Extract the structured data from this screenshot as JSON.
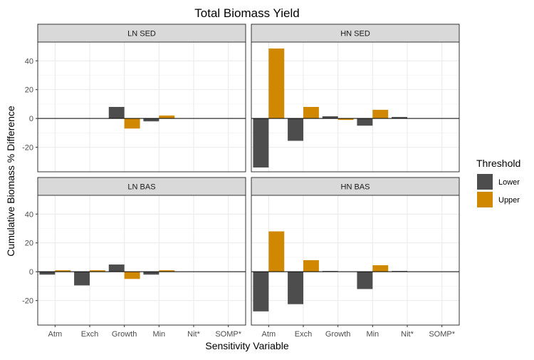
{
  "chart_data": {
    "type": "bar",
    "title": "Total Biomass Yield",
    "xlabel": "Sensitivity Variable",
    "ylabel": "Cumulative Biomass % Difference",
    "categories": [
      "Atm",
      "Exch",
      "Growth",
      "Min",
      "Nit*",
      "SOMP*"
    ],
    "ylim": [
      -37,
      53
    ],
    "yticks": [
      -20,
      0,
      20,
      40
    ],
    "grid": true,
    "legend": {
      "title": "Threshold",
      "position": "right",
      "entries": [
        {
          "name": "Lower",
          "color": "#4d4d4d"
        },
        {
          "name": "Upper",
          "color": "#d08800"
        }
      ]
    },
    "panels": [
      {
        "label": "LN SED",
        "series": [
          {
            "name": "Lower",
            "values": [
              0,
              0,
              8,
              -2,
              0,
              0
            ]
          },
          {
            "name": "Upper",
            "values": [
              0,
              0,
              -7,
              2,
              0,
              0
            ]
          }
        ]
      },
      {
        "label": "HN SED",
        "series": [
          {
            "name": "Lower",
            "values": [
              -34,
              -15.5,
              1.5,
              -5,
              1,
              0
            ]
          },
          {
            "name": "Upper",
            "values": [
              48.5,
              8,
              -1,
              6,
              0,
              0
            ]
          }
        ]
      },
      {
        "label": "LN BAS",
        "series": [
          {
            "name": "Lower",
            "values": [
              -2,
              -9.5,
              5,
              -2,
              0,
              0
            ]
          },
          {
            "name": "Upper",
            "values": [
              1,
              1,
              -5,
              1,
              0,
              0
            ]
          }
        ]
      },
      {
        "label": "HN BAS",
        "series": [
          {
            "name": "Lower",
            "values": [
              -27.5,
              -22.5,
              0.5,
              -12,
              0.5,
              0
            ]
          },
          {
            "name": "Upper",
            "values": [
              28,
              8,
              0,
              4.5,
              0,
              0
            ]
          }
        ]
      }
    ]
  }
}
